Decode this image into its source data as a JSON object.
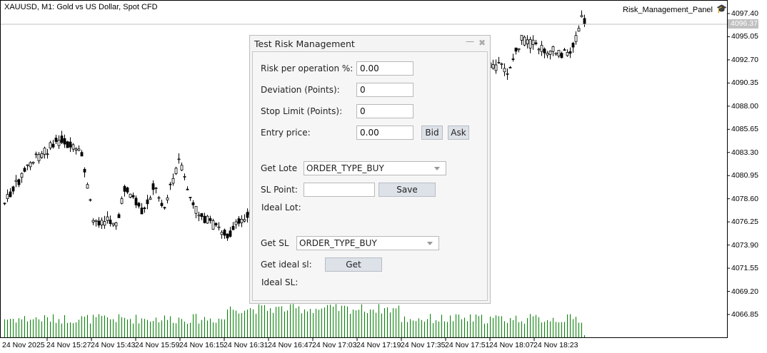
{
  "chart": {
    "title": "XAUUSD, M1:  Gold vs US Dollar, Spot CFD",
    "ea_name": "Risk_Management_Panel",
    "ea_icon": "graduation-cap-icon",
    "bid_price": "4096.37",
    "price_ticks": [
      "4097.40",
      "4095.05",
      "4092.70",
      "4090.35",
      "4088.00",
      "4085.65",
      "4083.30",
      "4080.95",
      "4078.60",
      "4076.25",
      "4073.90",
      "4071.55",
      "4069.20",
      "4066.85"
    ],
    "time_ticks": [
      "24 Nov 2025",
      "24 Nov 15:27",
      "24 Nov 15:43",
      "24 Nov 15:59",
      "24 Nov 16:15",
      "24 Nov 16:31",
      "24 Nov 16:47",
      "24 Nov 17:03",
      "24 Nov 17:19",
      "24 Nov 17:35",
      "24 Nov 17:51",
      "24 Nov 18:07",
      "24 Nov 18:23"
    ],
    "colors": {
      "candle": "#000000",
      "volume": "#008000",
      "bid_line": "#c0c0c0"
    }
  },
  "panel": {
    "title": "Test Risk Management",
    "minimize": "—",
    "close": "✖",
    "risk_label": "Risk per operation %:",
    "risk_value": "0.00",
    "deviation_label": "Deviation (Points):",
    "deviation_value": "0",
    "stop_limit_label": "Stop Limit (Points):",
    "stop_limit_value": "0",
    "entry_label": "Entry price:",
    "entry_value": "0.00",
    "bid_button": "Bid",
    "ask_button": "Ask",
    "get_lote_label": "Get Lote",
    "get_lote_selected": "ORDER_TYPE_BUY",
    "sl_point_label": "SL Point:",
    "sl_point_value": "",
    "save_button": "Save",
    "ideal_lot_label": "Ideal Lot:",
    "get_sl_label": "Get SL",
    "get_sl_selected": "ORDER_TYPE_BUY",
    "get_ideal_sl_label": "Get ideal sl:",
    "get_button": "Get",
    "ideal_sl_label": "Ideal SL:"
  }
}
